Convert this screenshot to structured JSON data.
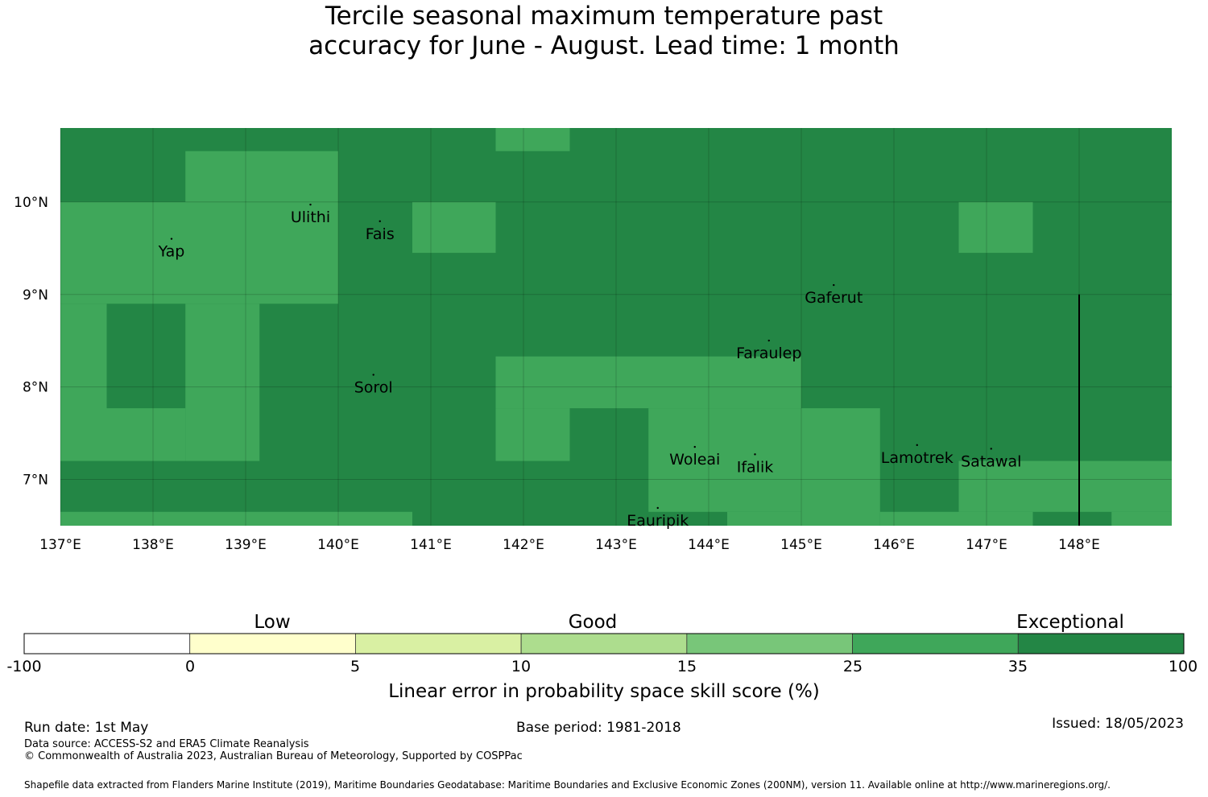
{
  "title": {
    "line1": "Tercile seasonal maximum temperature past",
    "line2": "accuracy for June - August. Lead time: 1 month"
  },
  "map": {
    "lon_range": [
      137,
      149
    ],
    "lat_range": [
      6.5,
      10.8
    ],
    "lon_ticks": [
      {
        "value": 137,
        "label": "137°E"
      },
      {
        "value": 138,
        "label": "138°E"
      },
      {
        "value": 139,
        "label": "139°E"
      },
      {
        "value": 140,
        "label": "140°E"
      },
      {
        "value": 141,
        "label": "141°E"
      },
      {
        "value": 142,
        "label": "142°E"
      },
      {
        "value": 143,
        "label": "143°E"
      },
      {
        "value": 144,
        "label": "144°E"
      },
      {
        "value": 145,
        "label": "145°E"
      },
      {
        "value": 146,
        "label": "146°E"
      },
      {
        "value": 147,
        "label": "147°E"
      },
      {
        "value": 148,
        "label": "148°E"
      }
    ],
    "lat_ticks": [
      {
        "value": 10,
        "label": "10°N"
      },
      {
        "value": 9,
        "label": "9°N"
      },
      {
        "value": 8,
        "label": "8°N"
      },
      {
        "value": 7,
        "label": "7°N"
      }
    ],
    "background_color": "#238645",
    "category_colors": {
      "exceptional": "#238645",
      "good_high": "#3fa75a"
    },
    "cells_25_35": [
      {
        "lon": [
          141.7,
          142.5
        ],
        "lat": [
          10.55,
          10.8
        ]
      },
      {
        "lon": [
          138.35,
          140.0
        ],
        "lat": [
          10.0,
          10.55
        ]
      },
      {
        "lon": [
          137.0,
          140.0
        ],
        "lat": [
          8.9,
          10.0
        ]
      },
      {
        "lon": [
          140.8,
          141.7
        ],
        "lat": [
          9.45,
          10.0
        ]
      },
      {
        "lon": [
          146.7,
          147.5
        ],
        "lat": [
          9.45,
          10.0
        ]
      },
      {
        "lon": [
          137.0,
          137.5
        ],
        "lat": [
          7.2,
          8.9
        ]
      },
      {
        "lon": [
          137.5,
          138.35
        ],
        "lat": [
          7.2,
          7.77
        ]
      },
      {
        "lon": [
          138.35,
          139.15
        ],
        "lat": [
          7.2,
          8.9
        ]
      },
      {
        "lon": [
          141.7,
          145.0
        ],
        "lat": [
          7.77,
          8.33
        ]
      },
      {
        "lon": [
          141.7,
          142.5
        ],
        "lat": [
          7.2,
          7.77
        ]
      },
      {
        "lon": [
          143.35,
          145.0
        ],
        "lat": [
          6.65,
          7.77
        ]
      },
      {
        "lon": [
          145.0,
          145.85
        ],
        "lat": [
          6.5,
          7.77
        ]
      },
      {
        "lon": [
          145.85,
          146.7
        ],
        "lat": [
          6.5,
          6.65
        ]
      },
      {
        "lon": [
          146.7,
          149.0
        ],
        "lat": [
          6.65,
          7.2
        ]
      },
      {
        "lon": [
          146.7,
          147.5
        ],
        "lat": [
          6.5,
          6.65
        ]
      },
      {
        "lon": [
          148.35,
          149.0
        ],
        "lat": [
          6.5,
          6.65
        ]
      },
      {
        "lon": [
          137.0,
          140.8
        ],
        "lat": [
          6.5,
          6.65
        ]
      },
      {
        "lon": [
          144.2,
          145.0
        ],
        "lat": [
          6.5,
          6.65
        ]
      }
    ],
    "boundary_line": {
      "lon": 148,
      "lat": [
        6.5,
        9.0
      ]
    },
    "places": [
      {
        "name": "Yap",
        "lon": 138.2,
        "lat": 9.48
      },
      {
        "name": "Ulithi",
        "lon": 139.7,
        "lat": 9.85
      },
      {
        "name": "Fais",
        "lon": 140.45,
        "lat": 9.67
      },
      {
        "name": "Gaferut",
        "lon": 145.35,
        "lat": 8.98
      },
      {
        "name": "Faraulep",
        "lon": 144.65,
        "lat": 8.38
      },
      {
        "name": "Sorol",
        "lon": 140.38,
        "lat": 8.01
      },
      {
        "name": "Woleai",
        "lon": 143.85,
        "lat": 7.23
      },
      {
        "name": "Ifalik",
        "lon": 144.5,
        "lat": 7.15
      },
      {
        "name": "Lamotrek",
        "lon": 146.25,
        "lat": 7.25
      },
      {
        "name": "Satawal",
        "lon": 147.05,
        "lat": 7.21
      },
      {
        "name": "Eauripik",
        "lon": 143.45,
        "lat": 6.57
      }
    ]
  },
  "colorbar": {
    "bins": [
      {
        "from": -100,
        "to": 0,
        "color": "#ffffff"
      },
      {
        "from": 0,
        "to": 5,
        "color": "#ffffcc"
      },
      {
        "from": 5,
        "to": 10,
        "color": "#d9f0a3"
      },
      {
        "from": 10,
        "to": 15,
        "color": "#addd8e"
      },
      {
        "from": 15,
        "to": 25,
        "color": "#78c679"
      },
      {
        "from": 25,
        "to": 35,
        "color": "#3fa75a"
      },
      {
        "from": 35,
        "to": 100,
        "color": "#238645"
      }
    ],
    "tick_labels": [
      "-100",
      "0",
      "5",
      "10",
      "15",
      "25",
      "35",
      "100"
    ],
    "categories": {
      "low": "Low",
      "good": "Good",
      "exceptional": "Exceptional"
    },
    "title": "Linear error in probability space skill score (%)"
  },
  "footer": {
    "run_date": "Run date: 1st May",
    "base_period": "Base period: 1981-2018",
    "issued": "Issued: 18/05/2023",
    "data_source": "Data source: ACCESS-S2 and ERA5 Climate Reanalysis",
    "copyright": "© Commonwealth of Australia 2023, Australian Bureau of Meteorology, Supported by COSPPac",
    "shapefile": "Shapefile data extracted from Flanders Marine Institute (2019), Maritime Boundaries Geodatabase: Maritime Boundaries and Exclusive Economic Zones (200NM), version 11. Available online at http://www.marineregions.org/."
  }
}
